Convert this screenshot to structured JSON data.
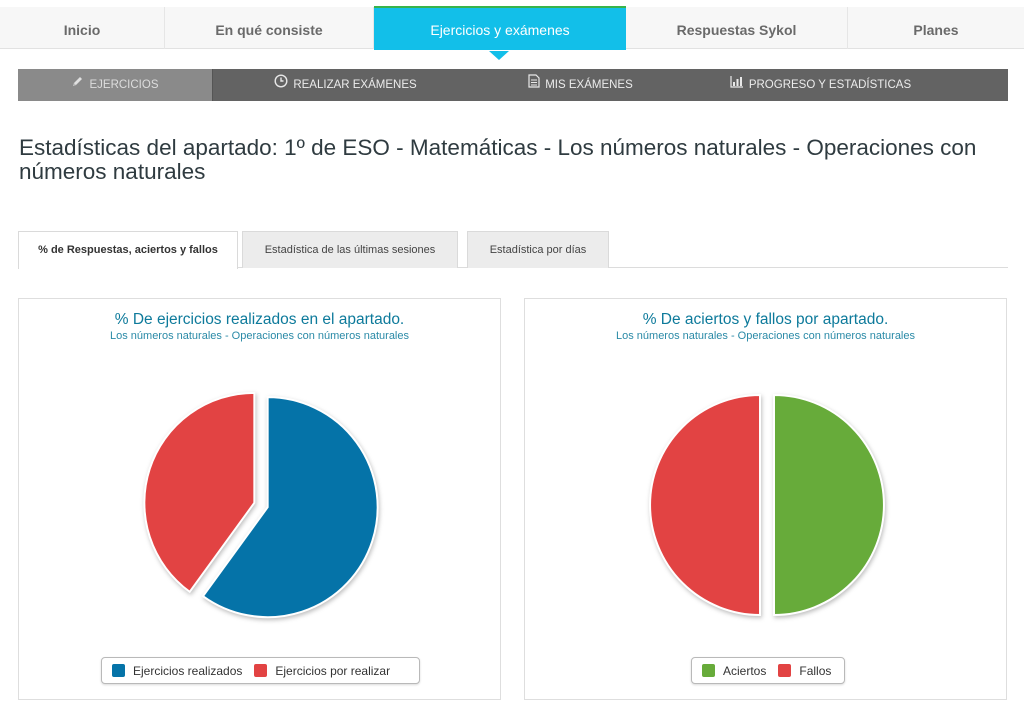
{
  "topnav": {
    "items": [
      {
        "label": "Inicio"
      },
      {
        "label": "En qué consiste"
      },
      {
        "label": "Ejercicios y exámenes"
      },
      {
        "label": "Respuestas Sykol"
      },
      {
        "label": "Planes"
      }
    ]
  },
  "subnav": {
    "items": [
      {
        "label": "EJERCICIOS",
        "icon": "pencil-icon"
      },
      {
        "label": "REALIZAR EXÁMENES",
        "icon": "clock-icon"
      },
      {
        "label": "MIS EXÁMENES",
        "icon": "document-icon"
      },
      {
        "label": "PROGRESO Y ESTADÍSTICAS",
        "icon": "bar-chart-icon"
      }
    ]
  },
  "page": {
    "title": "Estadísticas del apartado: 1º de ESO - Matemáticas - Los números naturales - Operaciones con números naturales"
  },
  "tabs": [
    {
      "label": "% de Respuestas, aciertos y fallos"
    },
    {
      "label": "Estadística de las últimas sesiones"
    },
    {
      "label": "Estadística por días"
    }
  ],
  "colors": {
    "blue": "#0573a8",
    "red": "#e24343",
    "green": "#67ab3a",
    "accent": "#12bfe9"
  },
  "chart_data": [
    {
      "type": "pie",
      "title": "% De ejercicios realizados en el apartado.",
      "subtitle": "Los números naturales - Operaciones con números naturales",
      "categories": [
        "Ejercicios realizados",
        "Ejercicios por realizar"
      ],
      "values": [
        60,
        40
      ],
      "colors": [
        "#0573a8",
        "#e24343"
      ],
      "legend": "bottom"
    },
    {
      "type": "pie",
      "title": "% De aciertos y fallos por apartado.",
      "subtitle": "Los números naturales - Operaciones con números naturales",
      "categories": [
        "Aciertos",
        "Fallos"
      ],
      "values": [
        50,
        50
      ],
      "colors": [
        "#67ab3a",
        "#e24343"
      ],
      "legend": "bottom"
    }
  ]
}
